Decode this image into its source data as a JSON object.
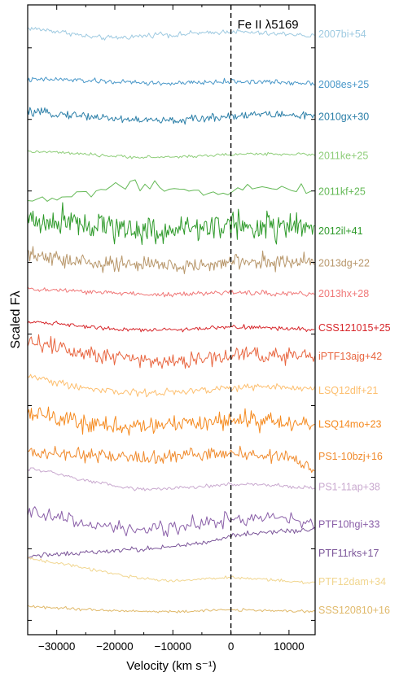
{
  "chart_data": {
    "type": "line",
    "title": "",
    "xlabel": "Velocity (km s⁻¹)",
    "ylabel": "Scaled Fλ",
    "xlim": [
      -35000,
      14500
    ],
    "xticks": [
      -30000,
      -20000,
      -10000,
      0,
      10000
    ],
    "xtick_labels": [
      "−30000",
      "−20000",
      "−10000",
      "0",
      "10000"
    ],
    "yticks_shown": false,
    "grid": false,
    "annotation": {
      "text": "Fe II λ5169",
      "x": 0,
      "linestyle": "dashed",
      "color": "#000000"
    },
    "series": [
      {
        "name": "2007bi+54",
        "color": "#9ecae1",
        "offset": 14.4,
        "x": [
          -35000,
          -32000,
          -30000,
          -28000,
          -26000,
          -24000,
          -22000,
          -20000,
          -18000,
          -16000,
          -14000,
          -12000,
          -10000,
          -8000,
          -6000,
          -4000,
          -2000,
          0,
          2000,
          4000,
          6000,
          8000,
          10000,
          12000,
          14500
        ],
        "y": [
          0.15,
          0.1,
          0.06,
          0.02,
          -0.05,
          -0.1,
          -0.12,
          -0.12,
          -0.1,
          -0.08,
          -0.05,
          0.0,
          -0.05,
          -0.02,
          0.02,
          0.0,
          0.04,
          0.06,
          0.04,
          0.02,
          0.0,
          -0.02,
          0.0,
          -0.05,
          -0.08
        ]
      },
      {
        "name": "2008es+25",
        "color": "#4a98c9",
        "offset": 13.0,
        "x": [
          -35000,
          -30000,
          -25000,
          -20000,
          -15000,
          -10000,
          -5000,
          0,
          5000,
          10000,
          14500
        ],
        "y": [
          0.1,
          0.12,
          0.08,
          0.05,
          0.02,
          0.0,
          0.03,
          0.06,
          0.05,
          0.03,
          0.02
        ]
      },
      {
        "name": "2010gx+30",
        "color": "#2b7fa8",
        "offset": 12.1,
        "x": [
          -35000,
          -30000,
          -25000,
          -20000,
          -15000,
          -10000,
          -5000,
          0,
          5000,
          10000,
          14500
        ],
        "y": [
          0.1,
          0.06,
          0.0,
          -0.08,
          -0.12,
          -0.14,
          -0.08,
          0.0,
          0.05,
          0.02,
          0.0
        ]
      },
      {
        "name": "2011ke+25",
        "color": "#8fce7a",
        "offset": 11.0,
        "x": [
          -35000,
          -30000,
          -25000,
          -20000,
          -15000,
          -10000,
          -5000,
          0,
          5000,
          10000,
          14500
        ],
        "y": [
          0.1,
          0.08,
          0.02,
          -0.03,
          -0.06,
          -0.05,
          -0.02,
          0.02,
          0.04,
          0.03,
          0.02
        ]
      },
      {
        "name": "2011kf+25",
        "color": "#64b956",
        "offset": 10.0,
        "x": [
          -35000,
          -30000,
          -25000,
          -20000,
          -15000,
          -10000,
          -5000,
          0,
          5000,
          10000,
          14500
        ],
        "y": [
          -0.3,
          -0.2,
          -0.05,
          0.1,
          0.15,
          0.0,
          -0.05,
          0.05,
          0.1,
          0.05,
          0.0
        ]
      },
      {
        "name": "2012il+41",
        "color": "#2e9a2a",
        "offset": 8.9,
        "x": [
          -35000,
          -30000,
          -28000,
          -25000,
          -20000,
          -15000,
          -10000,
          -5000,
          0,
          5000,
          10000,
          14500
        ],
        "y": [
          0.3,
          0.2,
          0.4,
          0.2,
          0.1,
          0.0,
          0.0,
          0.1,
          0.15,
          0.1,
          0.1,
          0.05
        ]
      },
      {
        "name": "2013dg+22",
        "color": "#b8976b",
        "offset": 8.0,
        "x": [
          -35000,
          -30000,
          -25000,
          -20000,
          -15000,
          -10000,
          -5000,
          0,
          5000,
          10000,
          14500
        ],
        "y": [
          0.2,
          0.1,
          0.0,
          -0.05,
          -0.05,
          -0.1,
          -0.08,
          0.0,
          0.05,
          0.02,
          0.0
        ]
      },
      {
        "name": "2013hx+28",
        "color": "#f07878",
        "offset": 7.15,
        "x": [
          -35000,
          -30000,
          -25000,
          -20000,
          -15000,
          -10000,
          -5000,
          0,
          5000,
          10000,
          14500
        ],
        "y": [
          0.1,
          0.08,
          0.03,
          0.0,
          -0.03,
          -0.05,
          -0.02,
          0.02,
          0.0,
          -0.02,
          -0.03
        ]
      },
      {
        "name": "CSS121015+25",
        "color": "#d7262a",
        "offset": 6.2,
        "x": [
          -35000,
          -30000,
          -25000,
          -20000,
          -15000,
          -10000,
          -5000,
          0,
          5000,
          10000,
          14500
        ],
        "y": [
          0.15,
          0.1,
          0.02,
          -0.05,
          -0.08,
          -0.08,
          -0.04,
          0.0,
          -0.02,
          -0.05,
          -0.08
        ]
      },
      {
        "name": "iPTF13ajg+42",
        "color": "#e8653f",
        "offset": 5.4,
        "x": [
          -35000,
          -30000,
          -25000,
          -20000,
          -15000,
          -10000,
          -5000,
          0,
          5000,
          10000,
          14500
        ],
        "y": [
          0.4,
          0.25,
          0.1,
          0.0,
          -0.1,
          -0.15,
          -0.1,
          0.0,
          0.05,
          0.0,
          -0.1
        ]
      },
      {
        "name": "LSQ12dlf+21",
        "color": "#fdbf6f",
        "offset": 4.45,
        "x": [
          -35000,
          -30000,
          -25000,
          -20000,
          -15000,
          -10000,
          -5000,
          0,
          5000,
          10000,
          14500
        ],
        "y": [
          0.4,
          0.2,
          0.05,
          -0.05,
          -0.1,
          -0.08,
          -0.02,
          0.05,
          0.08,
          0.05,
          0.05
        ]
      },
      {
        "name": "LSQ14mo+23",
        "color": "#f58a1f",
        "offset": 3.5,
        "x": [
          -35000,
          -30000,
          -25000,
          -20000,
          -15000,
          -10000,
          -5000,
          0,
          5000,
          10000,
          14500
        ],
        "y": [
          0.3,
          0.15,
          0.0,
          -0.1,
          -0.05,
          0.0,
          0.05,
          0.1,
          0.05,
          0.0,
          -0.05
        ]
      },
      {
        "name": "PS1-10bzj+16",
        "color": "#f08a2c",
        "offset": 2.6,
        "x": [
          -35000,
          -30000,
          -25000,
          -20000,
          -15000,
          -10000,
          -5000,
          0,
          5000,
          10000,
          14500
        ],
        "y": [
          0.1,
          0.05,
          0.0,
          -0.05,
          -0.05,
          0.0,
          0.05,
          0.05,
          0.0,
          -0.05,
          -0.4
        ]
      },
      {
        "name": "PS1-11ap+38",
        "color": "#c9a9cf",
        "offset": 1.75,
        "x": [
          -35000,
          -30000,
          -25000,
          -20000,
          -15000,
          -10000,
          -5000,
          0,
          5000,
          10000,
          14500
        ],
        "y": [
          0.5,
          0.35,
          0.15,
          0.0,
          -0.1,
          -0.05,
          0.0,
          0.05,
          0.05,
          0.0,
          -0.05
        ]
      },
      {
        "name": "PTF10hgi+33",
        "color": "#8a5fa8",
        "offset": 0.7,
        "x": [
          -35000,
          -30000,
          -25000,
          -20000,
          -15000,
          -10000,
          -5000,
          0,
          5000,
          10000,
          14500
        ],
        "y": [
          0.3,
          0.2,
          0.0,
          -0.1,
          -0.2,
          -0.1,
          0.0,
          0.1,
          0.15,
          0.1,
          0.05
        ]
      },
      {
        "name": "PTF11rks+17",
        "color": "#7b5599",
        "offset": -0.1,
        "x": [
          -35000,
          -30000,
          -25000,
          -20000,
          -15000,
          -10000,
          -5000,
          0,
          5000,
          10000,
          14500
        ],
        "y": [
          -0.1,
          -0.05,
          0.0,
          0.05,
          0.1,
          0.15,
          0.25,
          0.45,
          0.55,
          0.6,
          0.65
        ]
      },
      {
        "name": "PTF12dam+34",
        "color": "#f1d68f",
        "offset": -0.9,
        "x": [
          -35000,
          -30000,
          -25000,
          -20000,
          -15000,
          -10000,
          -5000,
          0,
          5000,
          10000,
          14500
        ],
        "y": [
          0.65,
          0.5,
          0.35,
          0.2,
          0.05,
          0.0,
          0.05,
          0.1,
          0.05,
          0.0,
          -0.05
        ]
      },
      {
        "name": "SSS120810+16",
        "color": "#e0b96a",
        "offset": -1.7,
        "x": [
          -35000,
          -30000,
          -25000,
          -20000,
          -15000,
          -10000,
          -5000,
          0,
          5000,
          10000,
          14500
        ],
        "y": [
          0.1,
          0.05,
          0.0,
          -0.03,
          -0.05,
          -0.05,
          -0.03,
          0.0,
          -0.02,
          -0.04,
          -0.05
        ]
      }
    ]
  }
}
